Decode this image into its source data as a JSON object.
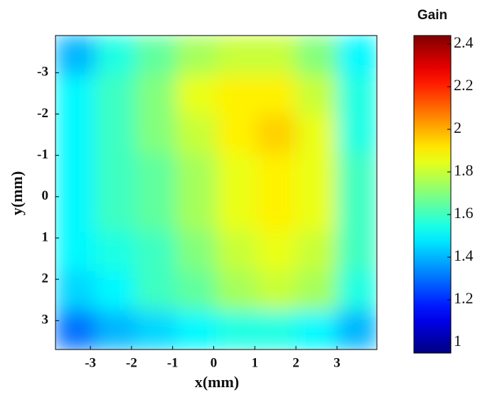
{
  "chart_data": {
    "type": "heatmap",
    "xlabel": "x(mm)",
    "ylabel": "y(mm)",
    "colorbar_label": "Gain",
    "xlim": [
      -3.85,
      3.97
    ],
    "xticks": [
      -3,
      -2,
      -1,
      0,
      1,
      2,
      3
    ],
    "ylim": [
      3.7,
      -3.9
    ],
    "yticks": [
      -3,
      -2,
      -1,
      0,
      1,
      2,
      3
    ],
    "colormap": "jet",
    "clim": [
      0.95,
      2.44
    ],
    "cticks": [
      1,
      1.2,
      1.4,
      1.6,
      1.8,
      2,
      2.2,
      2.4
    ],
    "z": [
      [
        1.4,
        1.55,
        1.65,
        1.75,
        1.8,
        1.8,
        1.7,
        1.5
      ],
      [
        1.5,
        1.6,
        1.7,
        1.85,
        1.9,
        1.9,
        1.8,
        1.55
      ],
      [
        1.5,
        1.6,
        1.7,
        1.8,
        1.9,
        1.95,
        1.85,
        1.55
      ],
      [
        1.5,
        1.6,
        1.65,
        1.75,
        1.85,
        1.9,
        1.85,
        1.6
      ],
      [
        1.5,
        1.6,
        1.65,
        1.75,
        1.85,
        1.9,
        1.85,
        1.6
      ],
      [
        1.5,
        1.55,
        1.6,
        1.7,
        1.8,
        1.85,
        1.8,
        1.6
      ],
      [
        1.45,
        1.5,
        1.6,
        1.65,
        1.75,
        1.8,
        1.75,
        1.55
      ],
      [
        1.3,
        1.4,
        1.45,
        1.5,
        1.55,
        1.55,
        1.5,
        1.4
      ]
    ]
  }
}
